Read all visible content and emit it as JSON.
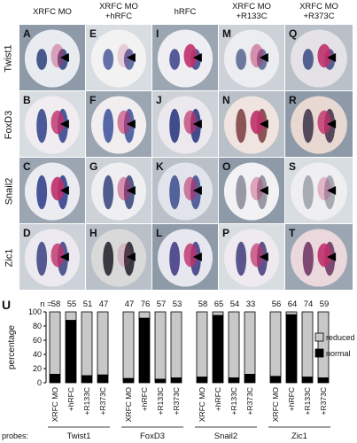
{
  "columns": [
    "XRFC MO",
    "XRFC MO\n+hRFC",
    "hRFC",
    "XRFC MO\n+R133C",
    "XRFC MO\n+R373C"
  ],
  "rows": [
    "Twist1",
    "FoxD3",
    "Snail2",
    "Zic1"
  ],
  "panel_letters": [
    "A",
    "E",
    "I",
    "M",
    "Q",
    "B",
    "F",
    "J",
    "N",
    "R",
    "C",
    "G",
    "K",
    "O",
    "S",
    "D",
    "H",
    "L",
    "P",
    "T"
  ],
  "panel_label": "U",
  "probes_label": "probes:",
  "chart_data": {
    "type": "bar",
    "stacked": true,
    "ylabel": "percentage",
    "ylim": [
      0,
      100
    ],
    "yticks": [
      0,
      20,
      40,
      60,
      80,
      100
    ],
    "legend": [
      {
        "name": "reduced",
        "color": "#c8c8c8"
      },
      {
        "name": "normal",
        "color": "#000000"
      }
    ],
    "legend_position": "right",
    "n_prefix": "n =",
    "groups": [
      {
        "probe": "Twist1",
        "categories": [
          "XRFC MO",
          "+hRFC",
          "+R133C",
          "+R373C"
        ],
        "n": [
          58,
          55,
          51,
          47
        ],
        "normal": [
          12,
          88,
          10,
          11
        ]
      },
      {
        "probe": "FoxD3",
        "categories": [
          "XRFC MO",
          "+hRFC",
          "+R133C",
          "+R373C"
        ],
        "n": [
          47,
          76,
          57,
          53
        ],
        "normal": [
          6,
          91,
          5,
          7
        ]
      },
      {
        "probe": "Snail2",
        "categories": [
          "XRFC MO",
          "+hRFC",
          "+R133C",
          "+R373C"
        ],
        "n": [
          58,
          65,
          54,
          33
        ],
        "normal": [
          8,
          95,
          7,
          12
        ]
      },
      {
        "probe": "Zic1",
        "categories": [
          "XRFC MO",
          "+hRFC",
          "+R133C",
          "+R373C"
        ],
        "n": [
          56,
          64,
          74,
          59
        ],
        "normal": [
          9,
          96,
          8,
          7
        ]
      }
    ]
  }
}
